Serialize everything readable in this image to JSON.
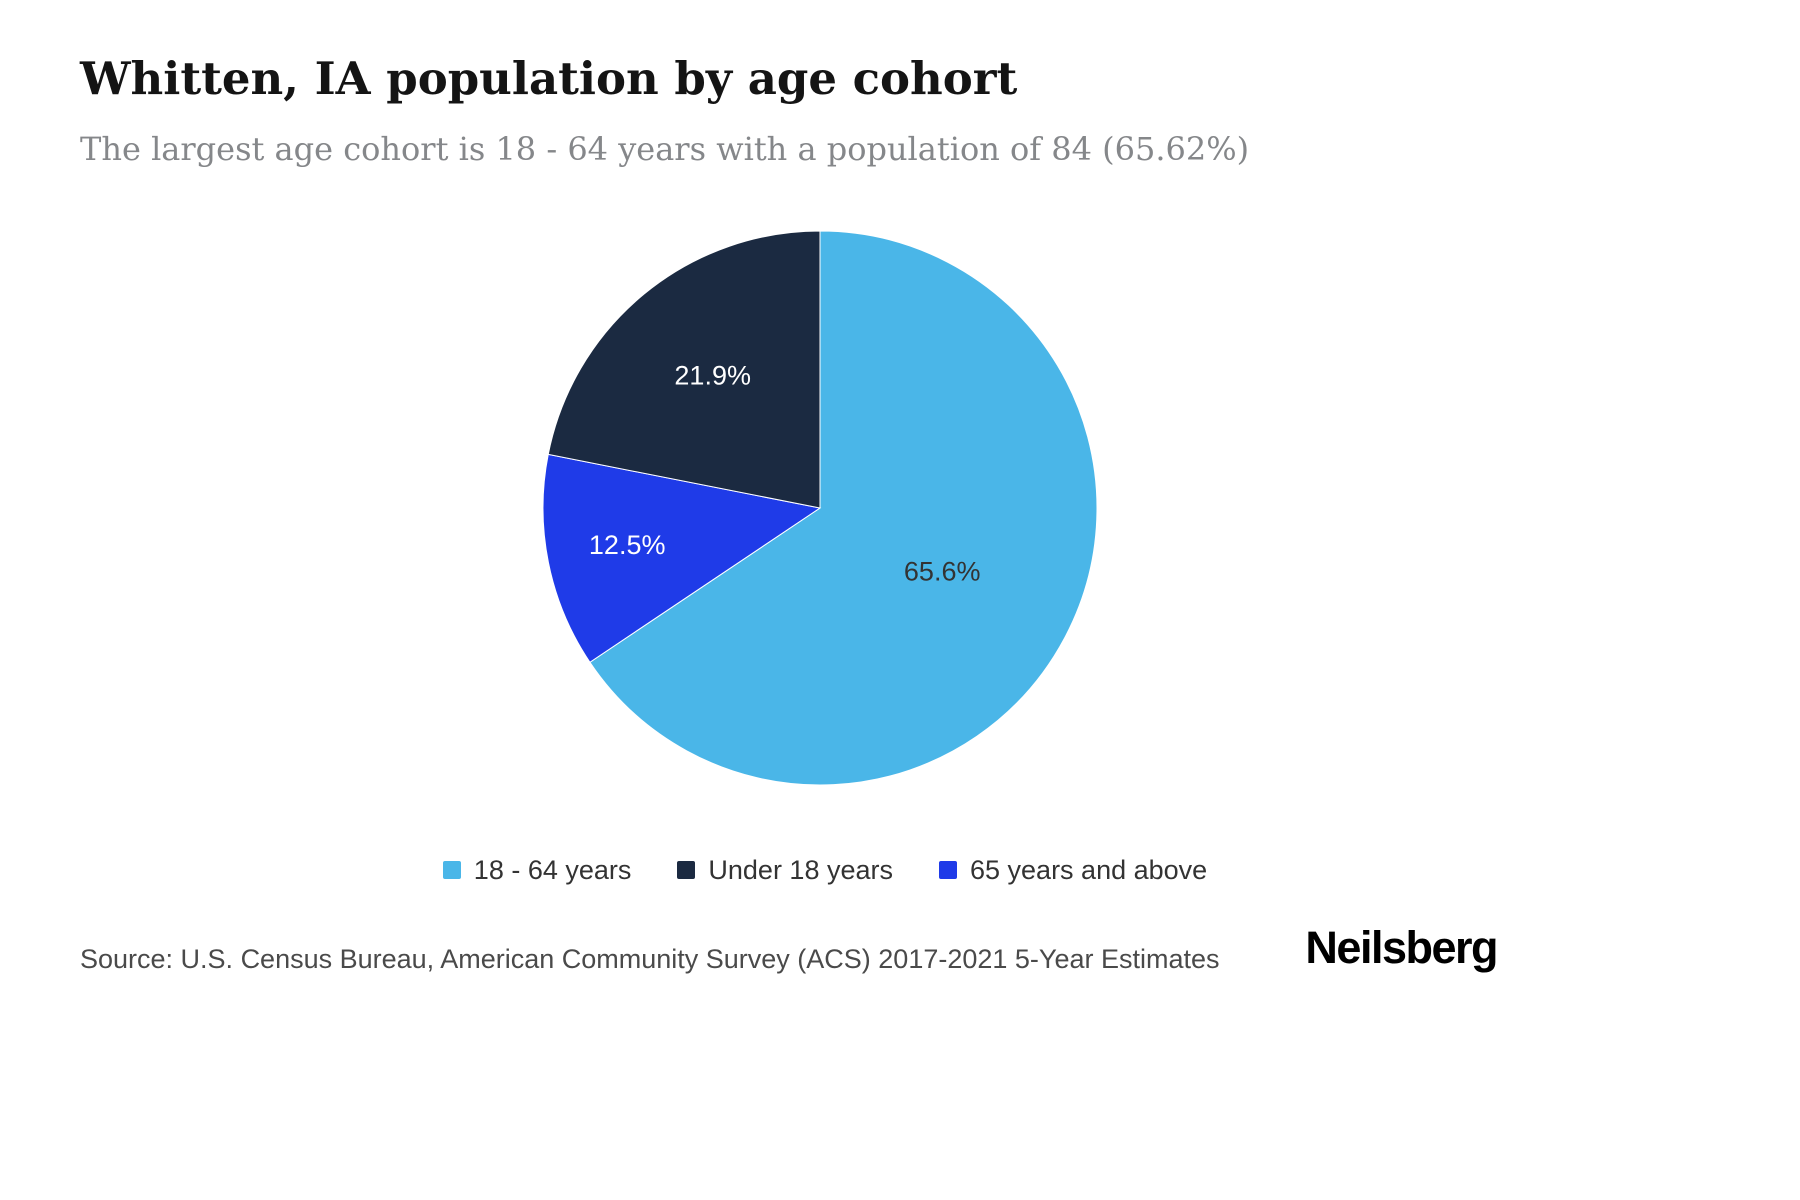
{
  "chart_data": {
    "type": "pie",
    "title": "Whitten, IA population by age cohort",
    "subtitle": "The largest age cohort is 18 - 64 years with a population of 84 (65.62%)",
    "legend_position": "bottom",
    "start_angle_deg": 0,
    "direction": "clockwise",
    "draw_order": [
      0,
      2,
      1
    ],
    "slices": [
      {
        "id": "18-64-years",
        "label": "18 - 64 years",
        "value": 65.6,
        "display": "65.6%",
        "color": "#4ab6e8",
        "label_color": "#333333",
        "label_r": 0.5
      },
      {
        "id": "under-18-years",
        "label": "Under 18 years",
        "value": 21.9,
        "display": "21.9%",
        "color": "#1b2a41",
        "label_color": "#ffffff",
        "label_r": 0.61
      },
      {
        "id": "65-years-and-above",
        "label": "65 years and above",
        "value": 12.5,
        "display": "12.5%",
        "color": "#1f3be8",
        "label_color": "#ffffff",
        "label_r": 0.71
      }
    ]
  },
  "footer": {
    "source": "Source: U.S. Census Bureau, American Community Survey (ACS) 2017-2021 5-Year Estimates",
    "brand": "Neilsberg"
  }
}
